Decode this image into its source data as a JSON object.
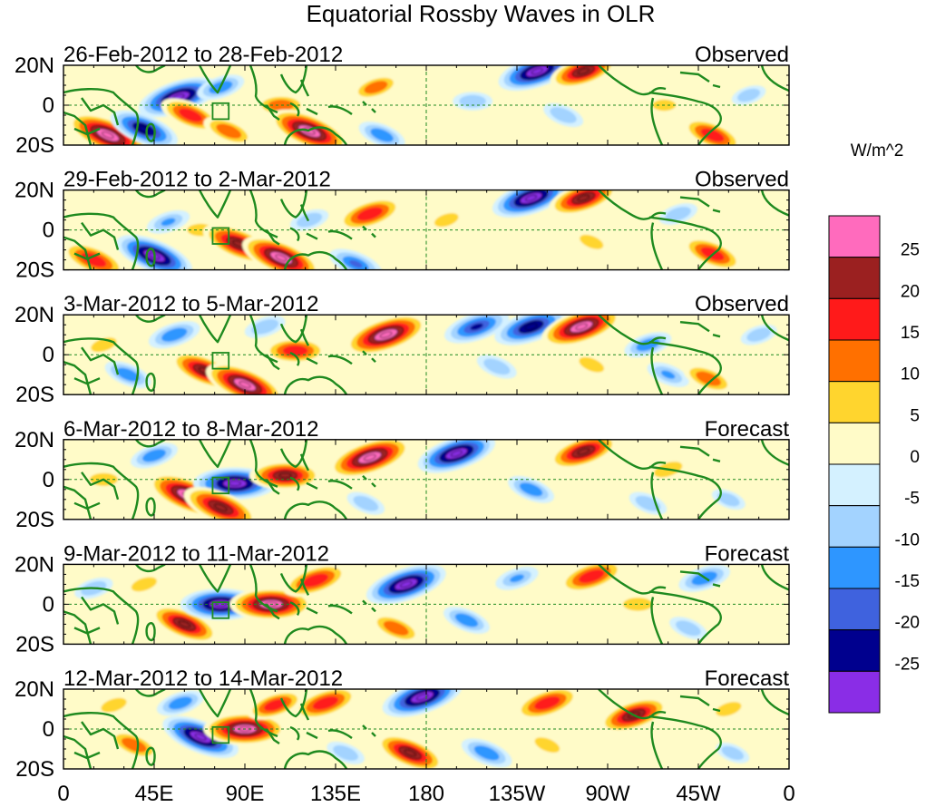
{
  "figure": {
    "title": "Equatorial Rossby Waves in OLR",
    "units": "W/m^2"
  },
  "lat_labels": [
    "20N",
    "0",
    "20S"
  ],
  "lon_labels": [
    "0",
    "45E",
    "90E",
    "135E",
    "180",
    "135W",
    "90W",
    "45W",
    "0"
  ],
  "colorbar": {
    "colors": [
      "#ff6bbd",
      "#9b2020",
      "#ff1a1a",
      "#ff7000",
      "#ffd52e",
      "#fffbc8",
      "#d4f1ff",
      "#a3d3ff",
      "#2e96ff",
      "#3f62de",
      "#00008e",
      "#8a2de6"
    ],
    "tick_labels": [
      "25",
      "20",
      "15",
      "10",
      "5",
      "0",
      "-5",
      "-10",
      "-15",
      "-20",
      "-25"
    ]
  },
  "panels": [
    {
      "dates": "26-Feb-2012 to 28-Feb-2012",
      "type": "Observed",
      "anomalies": [
        {
          "lon": 22,
          "lat": -15,
          "value": 28
        },
        {
          "lon": 40,
          "lat": -12,
          "value": -22
        },
        {
          "lon": 48,
          "lat": 0,
          "value": 8
        },
        {
          "lon": 57,
          "lat": 4,
          "value": -27
        },
        {
          "lon": 63,
          "lat": -5,
          "value": 18
        },
        {
          "lon": 78,
          "lat": 9,
          "value": -12
        },
        {
          "lon": 82,
          "lat": -13,
          "value": 14
        },
        {
          "lon": 108,
          "lat": 0,
          "value": 13
        },
        {
          "lon": 122,
          "lat": -13,
          "value": 27
        },
        {
          "lon": 155,
          "lat": 9,
          "value": 12
        },
        {
          "lon": 158,
          "lat": -15,
          "value": -12
        },
        {
          "lon": 203,
          "lat": 2,
          "value": -8
        },
        {
          "lon": 235,
          "lat": 17,
          "value": -26
        },
        {
          "lon": 258,
          "lat": 17,
          "value": 21
        },
        {
          "lon": 248,
          "lat": -5,
          "value": -9
        },
        {
          "lon": 322,
          "lat": -15,
          "value": 18
        },
        {
          "lon": 298,
          "lat": 0,
          "value": 6
        },
        {
          "lon": 340,
          "lat": 5,
          "value": -6
        }
      ]
    },
    {
      "dates": "29-Feb-2012 to 2-Mar-2012",
      "type": "Observed",
      "anomalies": [
        {
          "lon": 15,
          "lat": -15,
          "value": 20
        },
        {
          "lon": 45,
          "lat": -13,
          "value": -26
        },
        {
          "lon": 52,
          "lat": 4,
          "value": -10
        },
        {
          "lon": 68,
          "lat": 0,
          "value": 8
        },
        {
          "lon": 87,
          "lat": -7,
          "value": 24
        },
        {
          "lon": 108,
          "lat": -14,
          "value": 27
        },
        {
          "lon": 122,
          "lat": 5,
          "value": -8
        },
        {
          "lon": 145,
          "lat": -17,
          "value": -15
        },
        {
          "lon": 152,
          "lat": 8,
          "value": 20
        },
        {
          "lon": 190,
          "lat": 5,
          "value": 7
        },
        {
          "lon": 232,
          "lat": 16,
          "value": -26
        },
        {
          "lon": 258,
          "lat": 16,
          "value": 22
        },
        {
          "lon": 262,
          "lat": -6,
          "value": 7
        },
        {
          "lon": 305,
          "lat": 8,
          "value": -8
        },
        {
          "lon": 322,
          "lat": -12,
          "value": 18
        },
        {
          "lon": 350,
          "lat": 0,
          "value": 5
        }
      ]
    },
    {
      "dates": "3-Mar-2012 to 5-Mar-2012",
      "type": "Observed",
      "anomalies": [
        {
          "lon": 20,
          "lat": 5,
          "value": 8
        },
        {
          "lon": 32,
          "lat": -10,
          "value": -12
        },
        {
          "lon": 55,
          "lat": 10,
          "value": -14
        },
        {
          "lon": 70,
          "lat": -8,
          "value": 22
        },
        {
          "lon": 90,
          "lat": -15,
          "value": 27
        },
        {
          "lon": 115,
          "lat": 2,
          "value": 18
        },
        {
          "lon": 100,
          "lat": 14,
          "value": -9
        },
        {
          "lon": 160,
          "lat": 10,
          "value": 28
        },
        {
          "lon": 205,
          "lat": 14,
          "value": -20
        },
        {
          "lon": 232,
          "lat": 14,
          "value": -24
        },
        {
          "lon": 257,
          "lat": 14,
          "value": 27
        },
        {
          "lon": 215,
          "lat": -6,
          "value": -9
        },
        {
          "lon": 262,
          "lat": -5,
          "value": 8
        },
        {
          "lon": 290,
          "lat": 5,
          "value": -12
        },
        {
          "lon": 300,
          "lat": -10,
          "value": -10
        },
        {
          "lon": 320,
          "lat": -12,
          "value": 14
        },
        {
          "lon": 345,
          "lat": 10,
          "value": -7
        }
      ]
    },
    {
      "dates": "6-Mar-2012 to 8-Mar-2012",
      "type": "Forecast",
      "anomalies": [
        {
          "lon": 20,
          "lat": 0,
          "value": 9
        },
        {
          "lon": 45,
          "lat": 12,
          "value": -12
        },
        {
          "lon": 62,
          "lat": -8,
          "value": 28
        },
        {
          "lon": 85,
          "lat": -2,
          "value": -27
        },
        {
          "lon": 78,
          "lat": -14,
          "value": 25
        },
        {
          "lon": 110,
          "lat": 2,
          "value": 22
        },
        {
          "lon": 152,
          "lat": 11,
          "value": 28
        },
        {
          "lon": 195,
          "lat": 13,
          "value": -26
        },
        {
          "lon": 150,
          "lat": -12,
          "value": -8
        },
        {
          "lon": 232,
          "lat": -5,
          "value": -12
        },
        {
          "lon": 258,
          "lat": 14,
          "value": 22
        },
        {
          "lon": 300,
          "lat": 5,
          "value": 10
        },
        {
          "lon": 290,
          "lat": -12,
          "value": -8
        },
        {
          "lon": 330,
          "lat": -10,
          "value": -6
        }
      ]
    },
    {
      "dates": "9-Mar-2012 to 11-Mar-2012",
      "type": "Forecast",
      "anomalies": [
        {
          "lon": 15,
          "lat": 8,
          "value": -8
        },
        {
          "lon": 40,
          "lat": 10,
          "value": 8
        },
        {
          "lon": 60,
          "lat": -10,
          "value": 22
        },
        {
          "lon": 78,
          "lat": 0,
          "value": -26
        },
        {
          "lon": 103,
          "lat": 0,
          "value": 27
        },
        {
          "lon": 125,
          "lat": 12,
          "value": 20
        },
        {
          "lon": 170,
          "lat": 10,
          "value": -27
        },
        {
          "lon": 165,
          "lat": -12,
          "value": 14
        },
        {
          "lon": 200,
          "lat": -8,
          "value": -12
        },
        {
          "lon": 225,
          "lat": 13,
          "value": -10
        },
        {
          "lon": 262,
          "lat": 14,
          "value": 20
        },
        {
          "lon": 285,
          "lat": 0,
          "value": 10
        },
        {
          "lon": 318,
          "lat": 13,
          "value": -14
        },
        {
          "lon": 310,
          "lat": -12,
          "value": -8
        }
      ]
    },
    {
      "dates": "12-Mar-2012 to 14-Mar-2012",
      "type": "Forecast",
      "anomalies": [
        {
          "lon": 25,
          "lat": 12,
          "value": 8
        },
        {
          "lon": 35,
          "lat": -8,
          "value": 14
        },
        {
          "lon": 58,
          "lat": 13,
          "value": -12
        },
        {
          "lon": 68,
          "lat": -4,
          "value": -26
        },
        {
          "lon": 90,
          "lat": 0,
          "value": 27
        },
        {
          "lon": 105,
          "lat": 12,
          "value": 16
        },
        {
          "lon": 130,
          "lat": 13,
          "value": 20
        },
        {
          "lon": 178,
          "lat": 16,
          "value": -27
        },
        {
          "lon": 172,
          "lat": -12,
          "value": 22
        },
        {
          "lon": 140,
          "lat": -12,
          "value": -8
        },
        {
          "lon": 210,
          "lat": -12,
          "value": -14
        },
        {
          "lon": 240,
          "lat": 13,
          "value": 20
        },
        {
          "lon": 240,
          "lat": -8,
          "value": 8
        },
        {
          "lon": 283,
          "lat": 7,
          "value": 22
        },
        {
          "lon": 330,
          "lat": 10,
          "value": 8
        },
        {
          "lon": 332,
          "lat": -12,
          "value": -6
        }
      ]
    }
  ]
}
